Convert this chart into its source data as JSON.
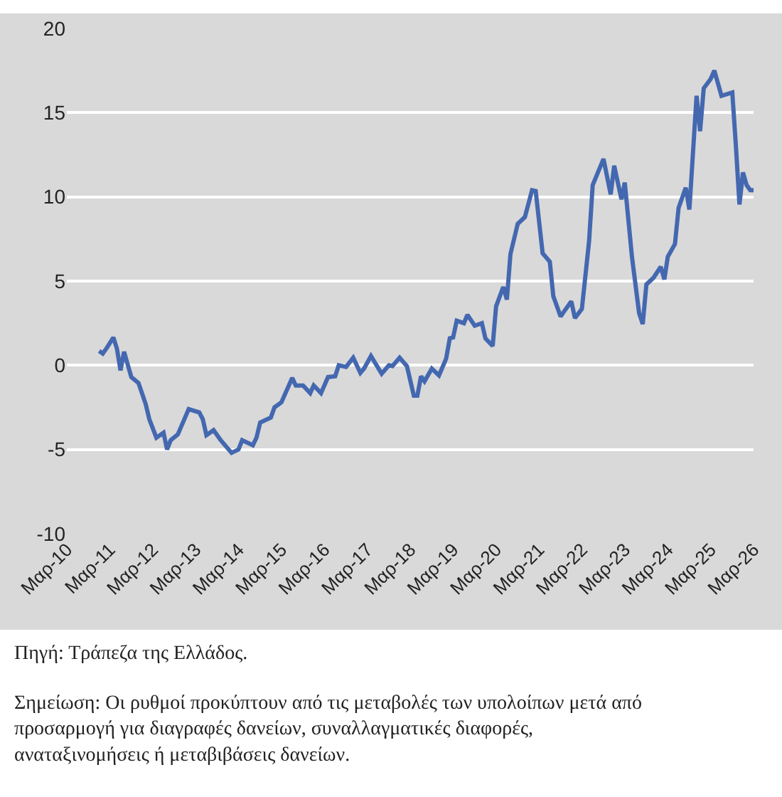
{
  "chart_data": {
    "type": "line",
    "x": [
      "2010-12",
      "2011-01",
      "2011-02",
      "2011-04",
      "2011-05",
      "2011-06",
      "2011-07",
      "2011-09",
      "2011-11",
      "2012-01",
      "2012-02",
      "2012-04",
      "2012-06",
      "2012-07",
      "2012-08",
      "2012-10",
      "2013-01",
      "2013-04",
      "2013-05",
      "2013-06",
      "2013-08",
      "2013-10",
      "2014-01",
      "2014-03",
      "2014-04",
      "2014-07",
      "2014-08",
      "2014-09",
      "2014-12",
      "2015-01",
      "2015-03",
      "2015-06",
      "2015-07",
      "2015-09",
      "2015-11",
      "2015-12",
      "2016-02",
      "2016-04",
      "2016-06",
      "2016-07",
      "2016-09",
      "2016-11",
      "2017-01",
      "2017-02",
      "2017-04",
      "2017-07",
      "2017-09",
      "2017-10",
      "2017-12",
      "2018-02",
      "2018-04",
      "2018-05",
      "2018-06",
      "2018-07",
      "2018-09",
      "2018-11",
      "2019-01",
      "2019-02",
      "2019-03",
      "2019-04",
      "2019-06",
      "2019-07",
      "2019-09",
      "2019-11",
      "2019-12",
      "2020-02",
      "2020-03",
      "2020-05",
      "2020-06",
      "2020-07",
      "2020-09",
      "2020-11",
      "2021-01",
      "2021-02",
      "2021-04",
      "2021-06",
      "2021-07",
      "2021-09",
      "2021-10",
      "2021-12",
      "2022-01",
      "2022-03",
      "2022-05",
      "2022-06",
      "2022-09",
      "2022-11",
      "2022-12",
      "2023-02",
      "2023-03",
      "2023-05",
      "2023-07",
      "2023-08",
      "2023-09",
      "2023-11",
      "2024-01",
      "2024-02",
      "2024-03",
      "2024-05",
      "2024-06",
      "2024-08",
      "2024-09",
      "2024-11",
      "2024-12",
      "2025-01",
      "2025-03",
      "2025-04",
      "2025-06",
      "2025-09",
      "2025-10",
      "2025-11",
      "2025-12",
      "2026-01",
      "2026-02",
      "2026-03"
    ],
    "series": [
      {
        "color": "#4468b0",
        "values": [
          0.85,
          0.7,
          1.0,
          1.65,
          1.0,
          -0.3,
          0.8,
          -0.7,
          -1.05,
          -2.3,
          -3.2,
          -4.3,
          -4.0,
          -5.0,
          -4.45,
          -4.1,
          -2.6,
          -2.8,
          -3.2,
          -4.15,
          -3.85,
          -4.45,
          -5.2,
          -5.0,
          -4.45,
          -4.75,
          -4.3,
          -3.4,
          -3.1,
          -2.5,
          -2.2,
          -0.75,
          -1.2,
          -1.2,
          -1.65,
          -1.2,
          -1.65,
          -0.7,
          -0.65,
          0.0,
          -0.1,
          0.45,
          -0.45,
          -0.2,
          0.55,
          -0.5,
          0.0,
          -0.05,
          0.45,
          -0.05,
          -1.8,
          -1.8,
          -0.65,
          -0.95,
          -0.2,
          -0.6,
          0.4,
          1.6,
          1.65,
          2.65,
          2.5,
          3.0,
          2.35,
          2.5,
          1.6,
          1.15,
          3.5,
          4.65,
          3.9,
          6.6,
          8.4,
          8.8,
          10.4,
          10.35,
          6.65,
          6.15,
          4.1,
          2.9,
          3.2,
          3.8,
          2.8,
          3.35,
          7.35,
          10.7,
          12.25,
          10.15,
          11.85,
          9.85,
          10.85,
          6.45,
          3.1,
          2.45,
          4.8,
          5.2,
          5.85,
          5.1,
          6.45,
          7.2,
          9.35,
          10.55,
          9.25,
          16.0,
          13.9,
          16.45,
          17.0,
          17.5,
          16.0,
          16.2,
          13.1,
          9.55,
          11.45,
          10.7,
          10.4,
          10.4
        ]
      }
    ],
    "xlim": [
      "2010-03",
      "2026-03"
    ],
    "xticks": [
      {
        "value": "2010-03",
        "label": "Μαρ-10"
      },
      {
        "value": "2011-03",
        "label": "Μαρ-11"
      },
      {
        "value": "2012-03",
        "label": "Μαρ-12"
      },
      {
        "value": "2013-03",
        "label": "Μαρ-13"
      },
      {
        "value": "2014-03",
        "label": "Μαρ-14"
      },
      {
        "value": "2015-03",
        "label": "Μαρ-15"
      },
      {
        "value": "2016-03",
        "label": "Μαρ-16"
      },
      {
        "value": "2017-03",
        "label": "Μαρ-17"
      },
      {
        "value": "2018-03",
        "label": "Μαρ-18"
      },
      {
        "value": "2019-03",
        "label": "Μαρ-19"
      },
      {
        "value": "2020-03",
        "label": "Μαρ-20"
      },
      {
        "value": "2021-03",
        "label": "Μαρ-21"
      },
      {
        "value": "2022-03",
        "label": "Μαρ-22"
      },
      {
        "value": "2023-03",
        "label": "Μαρ-23"
      },
      {
        "value": "2024-03",
        "label": "Μαρ-24"
      },
      {
        "value": "2025-03",
        "label": "Μαρ-25"
      },
      {
        "value": "2026-03",
        "label": "Μαρ-26"
      }
    ],
    "ylim": [
      -10,
      20
    ],
    "yticks": [
      -10,
      -5,
      0,
      5,
      10,
      15,
      20
    ],
    "grid": "y",
    "marker": "none",
    "line_style": "solid",
    "annotations": [
      "Πηγή: Τράπεζα της Ελλάδος.",
      "Σημείωση: Οι ρυθμοί προκύπτουν από τις μεταβολές των υπολοίπων μετά από προσαρμογή για διαγραφές δανείων, συναλλαγματικές διαφορές, αναταξινομήσεις ή μεταβιβάσεις δανείων."
    ]
  }
}
